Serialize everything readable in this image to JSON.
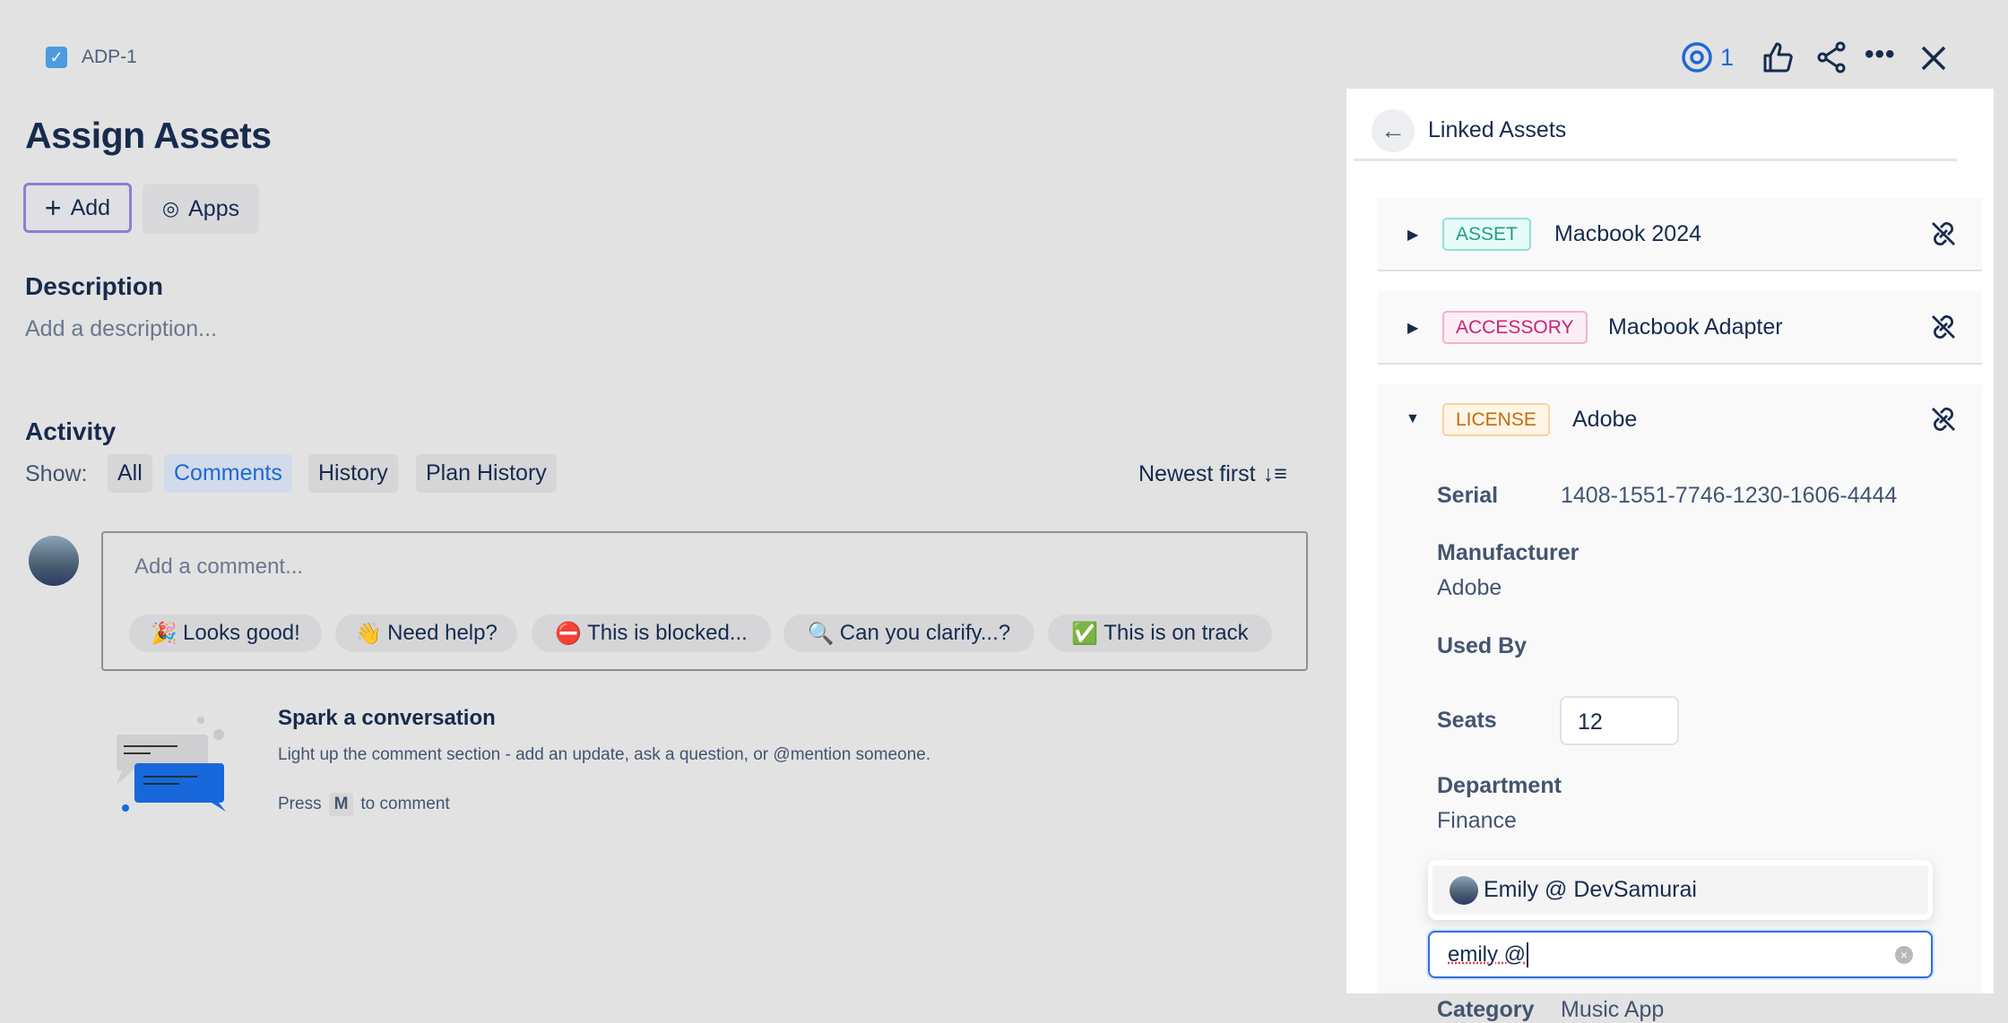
{
  "issue": {
    "key": "ADP-1",
    "title": "Assign Assets"
  },
  "toolbar": {
    "add_label": "Add",
    "apps_label": "Apps",
    "watch_count": "1"
  },
  "description": {
    "heading": "Description",
    "placeholder": "Add a description..."
  },
  "activity": {
    "heading": "Activity",
    "show_label": "Show:",
    "filters": [
      "All",
      "Comments",
      "History",
      "Plan History"
    ],
    "selected_filter": "Comments",
    "sort_label": "Newest first"
  },
  "comment": {
    "placeholder": "Add a comment...",
    "quick_replies": [
      {
        "emoji": "🎉",
        "label": "Looks good!"
      },
      {
        "emoji": "👋",
        "label": "Need help?"
      },
      {
        "emoji": "⛔",
        "label": "This is blocked..."
      },
      {
        "emoji": "🔍",
        "label": "Can you clarify...?"
      },
      {
        "emoji": "✅",
        "label": "This is on track"
      }
    ]
  },
  "empty_state": {
    "title": "Spark a conversation",
    "text": "Light up the comment section - add an update, ask a question, or @mention someone.",
    "press": "Press",
    "key": "M",
    "suffix": "to comment"
  },
  "panel": {
    "title": "Linked Assets",
    "assets": [
      {
        "type": "ASSET",
        "name": "Macbook 2024",
        "tag_color": "#1f9e8a",
        "tag_bg": "#e6fcf8",
        "tag_border": "#8fe3d4"
      },
      {
        "type": "ACCESSORY",
        "name": "Macbook Adapter",
        "tag_color": "#c5257a",
        "tag_bg": "#fdeef5",
        "tag_border": "#f5b0d0"
      },
      {
        "type": "LICENSE",
        "name": "Adobe",
        "tag_color": "#c46b0c",
        "tag_bg": "#fff5e6",
        "tag_border": "#f8d39a"
      }
    ],
    "details": {
      "serial_label": "Serial",
      "serial": "1408-1551-7746-1230-1606-4444",
      "manufacturer_label": "Manufacturer",
      "manufacturer": "Adobe",
      "used_by_label": "Used By",
      "seats_label": "Seats",
      "seats": "12",
      "department_label": "Department",
      "department": "Finance",
      "category_label": "Category",
      "category": "Music App"
    },
    "user_search": {
      "value": "emily @",
      "suggestion": "Emily @ DevSamurai"
    }
  }
}
